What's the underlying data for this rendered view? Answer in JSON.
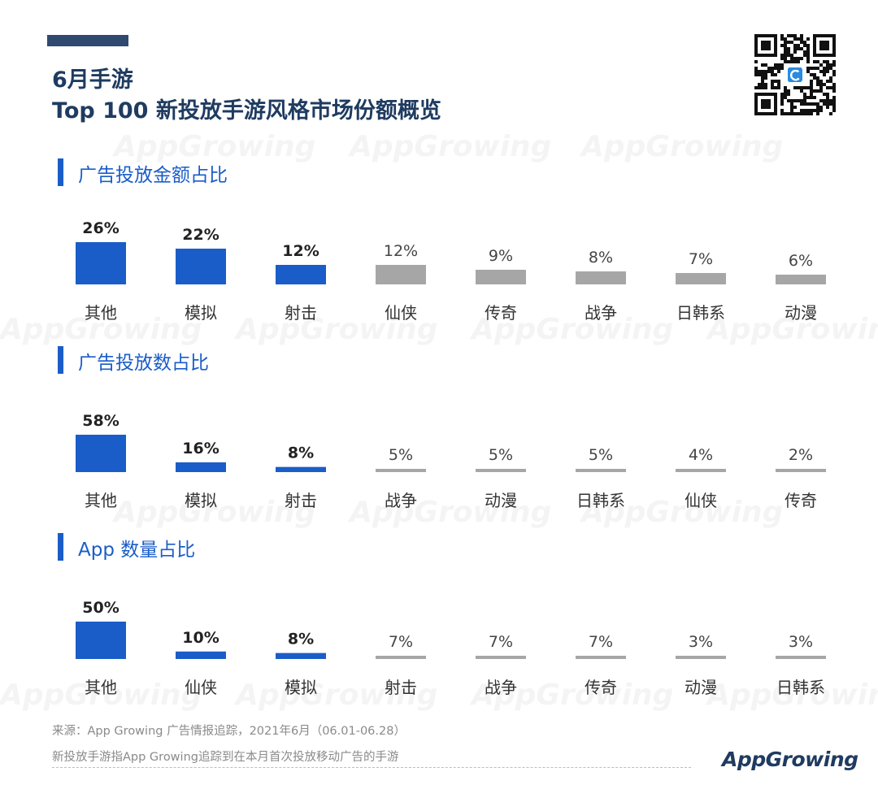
{
  "header": {
    "title_line1": "6月手游",
    "title_line2": "Top 100 新投放手游风格市场份额概览"
  },
  "watermark_text": "AppGrowing",
  "sections": [
    {
      "title": "广告投放金额占比"
    },
    {
      "title": "广告投放数占比"
    },
    {
      "title": "App 数量占比"
    }
  ],
  "chart_data": [
    {
      "type": "bar",
      "title": "广告投放金额占比",
      "categories": [
        "其他",
        "模拟",
        "射击",
        "仙侠",
        "传奇",
        "战争",
        "日韩系",
        "动漫"
      ],
      "values": [
        26,
        22,
        12,
        12,
        9,
        8,
        7,
        6
      ],
      "unit": "%",
      "highlight_count": 3,
      "colors": {
        "highlight": "#1a5dc8",
        "other": "#a6a6a6"
      }
    },
    {
      "type": "bar",
      "title": "广告投放数占比",
      "categories": [
        "其他",
        "模拟",
        "射击",
        "战争",
        "动漫",
        "日韩系",
        "仙侠",
        "传奇"
      ],
      "values": [
        58,
        16,
        8,
        5,
        5,
        5,
        4,
        2
      ],
      "unit": "%",
      "highlight_count": 3,
      "colors": {
        "highlight": "#1a5dc8",
        "other": "#a6a6a6"
      }
    },
    {
      "type": "bar",
      "title": "App 数量占比",
      "categories": [
        "其他",
        "仙侠",
        "模拟",
        "射击",
        "战争",
        "传奇",
        "动漫",
        "日韩系"
      ],
      "values": [
        50,
        10,
        8,
        7,
        7,
        7,
        3,
        3
      ],
      "unit": "%",
      "highlight_count": 3,
      "colors": {
        "highlight": "#1a5dc8",
        "other": "#a6a6a6"
      }
    }
  ],
  "footer": {
    "source_line1": "来源：App  Growing  广告情报追踪，2021年6月（06.01-06.28）",
    "source_line2": "新投放手游指App  Growing追踪到在本月首次投放移动广告的手游",
    "logo_text": "AppGrowing"
  },
  "icons": {
    "qr": "qr-code-icon"
  }
}
